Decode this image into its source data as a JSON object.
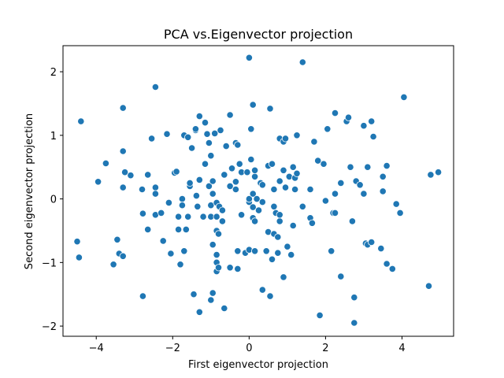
{
  "chart_data": {
    "type": "scatter",
    "title": "PCA vs.Eigenvector projection",
    "xlabel": "First eigenvector projection",
    "ylabel": "Second eigenvector projection",
    "xlim": [
      -4.87,
      5.35
    ],
    "ylim": [
      -2.16,
      2.41
    ],
    "xticks": [
      -4,
      -2,
      0,
      2,
      4
    ],
    "yticks": [
      -2,
      -1,
      0,
      1,
      2
    ],
    "grid": false,
    "legend": "none",
    "marker_color": "#1f77b4",
    "points": [
      [
        -4.5,
        -0.67
      ],
      [
        -4.45,
        -0.92
      ],
      [
        -4.4,
        1.22
      ],
      [
        -3.95,
        0.27
      ],
      [
        -3.75,
        0.56
      ],
      [
        -3.55,
        -1.03
      ],
      [
        -3.45,
        -0.64
      ],
      [
        -3.4,
        -0.86
      ],
      [
        -3.3,
        0.18
      ],
      [
        -3.3,
        -0.9
      ],
      [
        -3.3,
        1.43
      ],
      [
        -3.3,
        0.75
      ],
      [
        -3.25,
        0.42
      ],
      [
        -3.1,
        0.37
      ],
      [
        -2.8,
        0.15
      ],
      [
        -2.78,
        -0.23
      ],
      [
        -2.78,
        -1.53
      ],
      [
        -2.65,
        -0.48
      ],
      [
        -2.65,
        0.38
      ],
      [
        -2.55,
        0.95
      ],
      [
        -2.45,
        1.76
      ],
      [
        -2.45,
        0.18
      ],
      [
        -2.45,
        0.08
      ],
      [
        -2.45,
        -0.25
      ],
      [
        -2.3,
        -0.22
      ],
      [
        -2.25,
        -0.66
      ],
      [
        -2.15,
        1.02
      ],
      [
        -2.1,
        -0.06
      ],
      [
        -2.05,
        -0.86
      ],
      [
        -1.95,
        0.41
      ],
      [
        -1.9,
        0.43
      ],
      [
        -1.85,
        -0.28
      ],
      [
        -1.85,
        -0.48
      ],
      [
        -1.8,
        -1.03
      ],
      [
        -1.75,
        0.0
      ],
      [
        -1.75,
        -0.1
      ],
      [
        -1.7,
        1.0
      ],
      [
        -1.7,
        -0.82
      ],
      [
        -1.65,
        -0.48
      ],
      [
        -1.6,
        -0.28
      ],
      [
        -1.6,
        0.97
      ],
      [
        -1.55,
        0.2
      ],
      [
        -1.55,
        0.25
      ],
      [
        -1.5,
        0.8
      ],
      [
        -1.45,
        -1.5
      ],
      [
        -1.4,
        1.08
      ],
      [
        -1.4,
        1.1
      ],
      [
        -1.38,
        0.05
      ],
      [
        -1.35,
        -0.12
      ],
      [
        -1.3,
        0.3
      ],
      [
        -1.3,
        1.3
      ],
      [
        -1.3,
        -1.78
      ],
      [
        -1.2,
        -0.28
      ],
      [
        -1.15,
        1.2
      ],
      [
        -1.15,
        0.55
      ],
      [
        -1.1,
        1.02
      ],
      [
        -1.05,
        0.2
      ],
      [
        -1.05,
        0.88
      ],
      [
        -1.0,
        0.68
      ],
      [
        -1.0,
        -0.28
      ],
      [
        -1.0,
        -0.1
      ],
      [
        -1.0,
        -1.59
      ],
      [
        -0.95,
        -1.48
      ],
      [
        -0.95,
        -0.72
      ],
      [
        -0.95,
        0.08
      ],
      [
        -0.95,
        0.28
      ],
      [
        -0.9,
        1.03
      ],
      [
        -0.85,
        -0.06
      ],
      [
        -0.85,
        -0.28
      ],
      [
        -0.85,
        -0.5
      ],
      [
        -0.85,
        -0.88
      ],
      [
        -0.85,
        -1.0
      ],
      [
        -0.85,
        -1.14
      ],
      [
        -0.8,
        -0.55
      ],
      [
        -0.8,
        -1.08
      ],
      [
        -0.78,
        -0.12
      ],
      [
        -0.75,
        1.08
      ],
      [
        -0.7,
        -0.35
      ],
      [
        -0.7,
        -0.18
      ],
      [
        -0.65,
        0.38
      ],
      [
        -0.65,
        -1.72
      ],
      [
        -0.6,
        0.83
      ],
      [
        -0.5,
        -1.08
      ],
      [
        -0.5,
        1.32
      ],
      [
        -0.5,
        0.2
      ],
      [
        -0.45,
        0.48
      ],
      [
        -0.35,
        0.88
      ],
      [
        -0.35,
        0.27
      ],
      [
        -0.35,
        0.15
      ],
      [
        -0.3,
        -0.82
      ],
      [
        -0.3,
        -1.1
      ],
      [
        -0.3,
        0.85
      ],
      [
        -0.25,
        0.55
      ],
      [
        -0.2,
        -0.25
      ],
      [
        -0.2,
        0.42
      ],
      [
        -0.1,
        -0.85
      ],
      [
        -0.05,
        0.42
      ],
      [
        0.0,
        -0.05
      ],
      [
        0.0,
        -0.8
      ],
      [
        0.0,
        0.0
      ],
      [
        0.0,
        2.22
      ],
      [
        0.05,
        1.1
      ],
      [
        0.05,
        0.62
      ],
      [
        0.1,
        -0.13
      ],
      [
        0.1,
        -0.3
      ],
      [
        0.1,
        0.08
      ],
      [
        0.1,
        1.48
      ],
      [
        0.15,
        -0.82
      ],
      [
        0.15,
        -0.35
      ],
      [
        0.15,
        0.35
      ],
      [
        0.15,
        0.45
      ],
      [
        0.2,
        0.0
      ],
      [
        0.25,
        -0.18
      ],
      [
        0.3,
        0.25
      ],
      [
        0.35,
        -1.43
      ],
      [
        0.35,
        0.22
      ],
      [
        0.35,
        -0.05
      ],
      [
        0.45,
        -0.82
      ],
      [
        0.5,
        0.52
      ],
      [
        0.5,
        -0.52
      ],
      [
        0.55,
        -1.53
      ],
      [
        0.55,
        1.42
      ],
      [
        0.6,
        0.55
      ],
      [
        0.6,
        -0.95
      ],
      [
        0.65,
        -0.12
      ],
      [
        0.65,
        -0.55
      ],
      [
        0.65,
        0.15
      ],
      [
        0.7,
        -0.22
      ],
      [
        0.75,
        -0.85
      ],
      [
        0.75,
        -0.6
      ],
      [
        0.8,
        -0.35
      ],
      [
        0.8,
        -0.25
      ],
      [
        0.8,
        0.28
      ],
      [
        0.8,
        0.95
      ],
      [
        0.9,
        -1.23
      ],
      [
        0.9,
        0.45
      ],
      [
        0.9,
        0.9
      ],
      [
        0.95,
        0.95
      ],
      [
        0.95,
        0.18
      ],
      [
        1.0,
        -0.75
      ],
      [
        1.05,
        0.35
      ],
      [
        1.1,
        -0.88
      ],
      [
        1.15,
        0.5
      ],
      [
        1.15,
        -0.42
      ],
      [
        1.2,
        0.15
      ],
      [
        1.2,
        0.33
      ],
      [
        1.25,
        1.0
      ],
      [
        1.25,
        0.4
      ],
      [
        1.4,
        2.15
      ],
      [
        1.4,
        -0.12
      ],
      [
        1.6,
        -0.3
      ],
      [
        1.6,
        0.15
      ],
      [
        1.65,
        -0.38
      ],
      [
        1.7,
        0.9
      ],
      [
        1.8,
        0.6
      ],
      [
        1.85,
        -1.83
      ],
      [
        1.95,
        0.55
      ],
      [
        2.0,
        -0.03
      ],
      [
        2.05,
        1.1
      ],
      [
        2.15,
        -0.82
      ],
      [
        2.2,
        -0.22
      ],
      [
        2.25,
        -0.22
      ],
      [
        2.25,
        1.35
      ],
      [
        2.25,
        0.08
      ],
      [
        2.4,
        0.25
      ],
      [
        2.4,
        -1.22
      ],
      [
        2.55,
        1.22
      ],
      [
        2.6,
        1.28
      ],
      [
        2.65,
        0.5
      ],
      [
        2.7,
        -0.35
      ],
      [
        2.75,
        -1.55
      ],
      [
        2.75,
        -1.95
      ],
      [
        2.8,
        0.28
      ],
      [
        2.9,
        0.22
      ],
      [
        3.0,
        0.08
      ],
      [
        3.0,
        1.15
      ],
      [
        3.05,
        -0.7
      ],
      [
        3.1,
        -0.72
      ],
      [
        3.1,
        0.5
      ],
      [
        3.2,
        1.22
      ],
      [
        3.2,
        -0.68
      ],
      [
        3.25,
        0.98
      ],
      [
        3.45,
        -0.78
      ],
      [
        3.5,
        0.12
      ],
      [
        3.5,
        0.35
      ],
      [
        3.6,
        0.52
      ],
      [
        3.6,
        -1.02
      ],
      [
        3.75,
        -1.1
      ],
      [
        3.85,
        -0.08
      ],
      [
        3.95,
        -0.22
      ],
      [
        4.05,
        1.6
      ],
      [
        4.7,
        -1.37
      ],
      [
        4.75,
        0.38
      ],
      [
        4.95,
        0.42
      ]
    ]
  }
}
